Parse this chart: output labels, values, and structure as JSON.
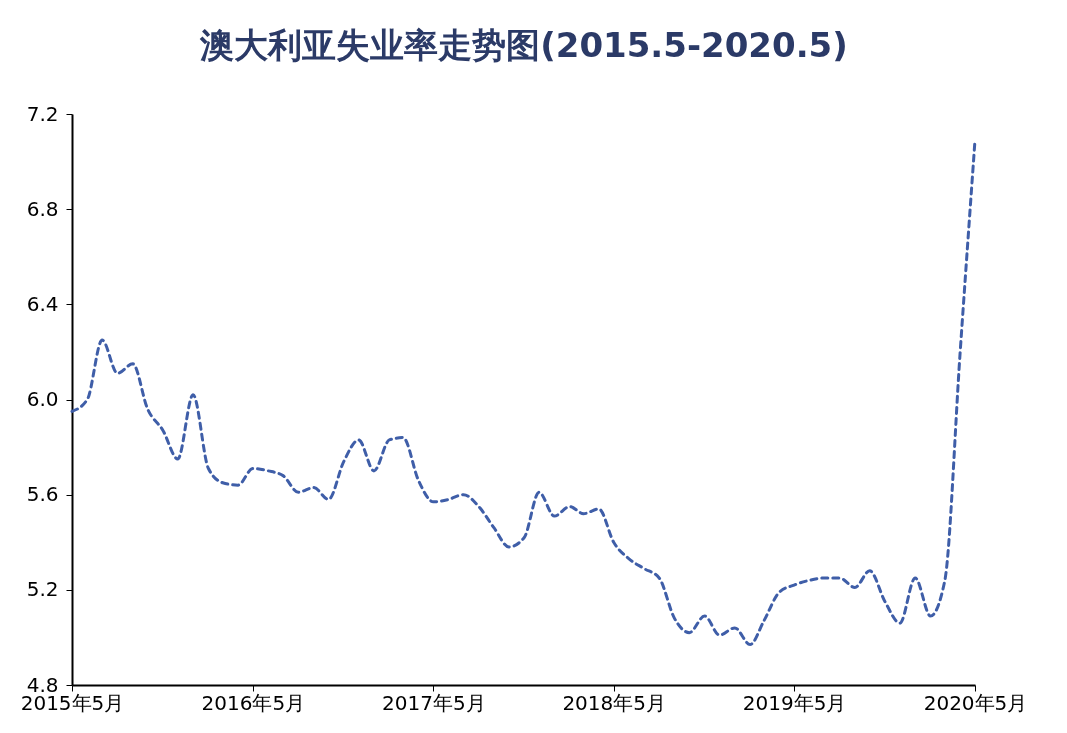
{
  "chart_data": {
    "type": "line",
    "title": "澳大利亚失业率走势图(2015.5-2020.5)",
    "x": [
      "2015-05",
      "2015-06",
      "2015-07",
      "2015-08",
      "2015-09",
      "2015-10",
      "2015-11",
      "2015-12",
      "2016-01",
      "2016-02",
      "2016-03",
      "2016-04",
      "2016-05",
      "2016-06",
      "2016-07",
      "2016-08",
      "2016-09",
      "2016-10",
      "2016-11",
      "2016-12",
      "2017-01",
      "2017-02",
      "2017-03",
      "2017-04",
      "2017-05",
      "2017-06",
      "2017-07",
      "2017-08",
      "2017-09",
      "2017-10",
      "2017-11",
      "2017-12",
      "2018-01",
      "2018-02",
      "2018-03",
      "2018-04",
      "2018-05",
      "2018-06",
      "2018-07",
      "2018-08",
      "2018-09",
      "2018-10",
      "2018-11",
      "2018-12",
      "2019-01",
      "2019-02",
      "2019-03",
      "2019-04",
      "2019-05",
      "2019-06",
      "2019-07",
      "2019-08",
      "2019-09",
      "2019-10",
      "2019-11",
      "2019-12",
      "2020-01",
      "2020-02",
      "2020-03",
      "2020-04",
      "2020-05"
    ],
    "series": [
      {
        "color": "#3f5ea8",
        "values": [
          5.95,
          6.0,
          6.25,
          6.11,
          6.15,
          5.96,
          5.87,
          5.75,
          6.02,
          5.71,
          5.65,
          5.64,
          5.71,
          5.7,
          5.68,
          5.61,
          5.63,
          5.58,
          5.74,
          5.83,
          5.7,
          5.83,
          5.84,
          5.66,
          5.57,
          5.58,
          5.6,
          5.55,
          5.46,
          5.38,
          5.42,
          5.61,
          5.51,
          5.55,
          5.52,
          5.54,
          5.4,
          5.33,
          5.29,
          5.25,
          5.08,
          5.02,
          5.09,
          5.01,
          5.04,
          4.97,
          5.07,
          5.19,
          5.22,
          5.24,
          5.25,
          5.25,
          5.21,
          5.28,
          5.15,
          5.06,
          5.25,
          5.09,
          5.24,
          6.2,
          7.09
        ]
      }
    ],
    "xlim": [
      "2015-05",
      "2020-05"
    ],
    "xticks": [
      {
        "value": "2015-05",
        "label": "2015年5月"
      },
      {
        "value": "2016-05",
        "label": "2016年5月"
      },
      {
        "value": "2017-05",
        "label": "2017年5月"
      },
      {
        "value": "2018-05",
        "label": "2018年5月"
      },
      {
        "value": "2019-05",
        "label": "2019年5月"
      },
      {
        "value": "2020-05",
        "label": "2020年5月"
      }
    ],
    "ylim": [
      4.8,
      7.2
    ],
    "yticks": [
      4.8,
      5.2,
      5.6,
      {
        "value": 6,
        "label": "6.0"
      },
      6.4,
      6.8,
      7.2
    ],
    "grid": false,
    "line_style": "dashed",
    "marker": "none"
  }
}
